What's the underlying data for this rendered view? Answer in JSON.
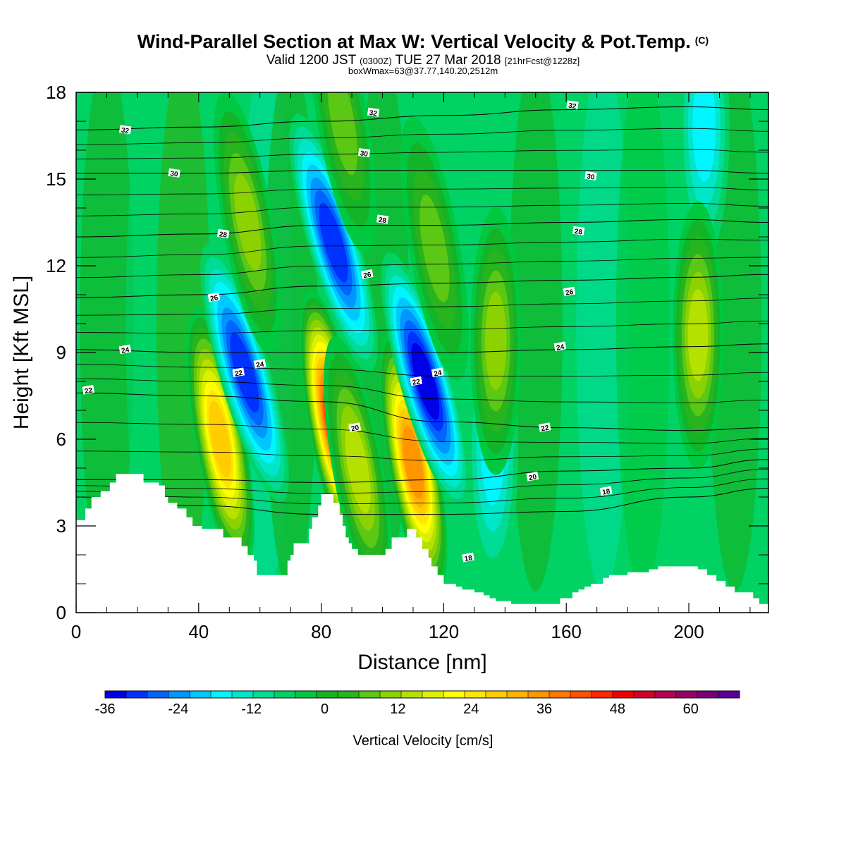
{
  "header": {
    "title": "Wind-Parallel Section at Max W: Vertical Velocity & Pot.Temp.",
    "title_mark": "(C)",
    "valid_a": "Valid 1200 JST",
    "valid_utc": "(0300Z)",
    "valid_b": "TUE 27 Mar 2018",
    "fcst": "[21hrFcst@1228z]",
    "subline": "boxWmax=63@37.77,140.20,2512m"
  },
  "chart_data": {
    "type": "heatmap",
    "title": "Wind-Parallel Section at Max W: Vertical Velocity & Pot.Temp.",
    "xlabel": "Distance [nm]",
    "ylabel": "Height [Kft MSL]",
    "xlim": [
      0,
      226
    ],
    "ylim": [
      0,
      18
    ],
    "x_ticks": [
      0,
      40,
      80,
      120,
      160,
      200
    ],
    "y_ticks": [
      0,
      3,
      6,
      9,
      12,
      15,
      18
    ],
    "colorbar": {
      "title": "Vertical Velocity [cm/s]",
      "range": [
        -36,
        68
      ],
      "step": 4,
      "tick_labels": [
        "-36",
        "-24",
        "-12",
        "0",
        "12",
        "24",
        "36",
        "48",
        "60"
      ],
      "tick_values": [
        -36,
        -24,
        -12,
        0,
        12,
        24,
        36,
        48,
        60
      ],
      "colors": [
        "#0000e6",
        "#0032ff",
        "#0064ff",
        "#0096ff",
        "#00c8ff",
        "#00f5ff",
        "#00e6c8",
        "#00dc96",
        "#00d264",
        "#00c840",
        "#14b428",
        "#28b41e",
        "#5ac814",
        "#8cd200",
        "#b4e100",
        "#dcf000",
        "#ffff00",
        "#ffe600",
        "#ffcd00",
        "#ffb400",
        "#ff9600",
        "#ff7800",
        "#ff5000",
        "#ff2800",
        "#f00000",
        "#d20028",
        "#b40050",
        "#960064",
        "#780078",
        "#5a0096"
      ]
    },
    "velocity_cells": [
      {
        "x": 47,
        "z": 6.0,
        "w": 40
      },
      {
        "x": 84,
        "z": 6.6,
        "w": 56
      },
      {
        "x": 110,
        "z": 5.2,
        "w": 48
      },
      {
        "x": 55,
        "z": 8.3,
        "w": -30
      },
      {
        "x": 84,
        "z": 12.8,
        "w": -32
      },
      {
        "x": 114,
        "z": 8.0,
        "w": -34
      },
      {
        "x": 136,
        "z": 5.6,
        "w": -14
      },
      {
        "x": 205,
        "z": 16.8,
        "w": -14
      },
      {
        "x": 203,
        "z": 9.6,
        "w": 24
      },
      {
        "x": 137,
        "z": 9.4,
        "w": 20
      },
      {
        "x": 92,
        "z": 5.0,
        "w": 22
      },
      {
        "x": 56,
        "z": 13.5,
        "w": 18
      },
      {
        "x": 87,
        "z": 17.0,
        "w": 16
      },
      {
        "x": 117,
        "z": 12.6,
        "w": 14
      }
    ],
    "theta_contours": [
      {
        "theta": "18",
        "z": [
          4.0,
          3.7,
          3.4,
          3.4,
          3.5,
          4.0,
          4.3
        ]
      },
      {
        "theta": "20",
        "z": [
          4.6,
          4.6,
          4.5,
          4.6,
          4.9,
          5.0,
          5.3
        ]
      },
      {
        "theta": "22",
        "z": [
          7.6,
          7.5,
          7.3,
          6.6,
          6.4,
          6.3,
          6.4
        ]
      },
      {
        "theta": "24",
        "z": [
          9.1,
          9.0,
          9.0,
          9.0,
          9.1,
          9.2,
          9.3
        ]
      },
      {
        "theta": "26",
        "z": [
          10.9,
          11.0,
          11.3,
          11.4,
          11.5,
          11.6,
          11.7
        ]
      },
      {
        "theta": "28",
        "z": [
          13.0,
          13.1,
          13.4,
          13.4,
          13.5,
          13.6,
          13.5
        ]
      },
      {
        "theta": "30",
        "z": [
          15.2,
          15.2,
          15.3,
          15.3,
          15.3,
          15.3,
          15.2
        ]
      },
      {
        "theta": "32",
        "z": [
          16.7,
          16.8,
          17.0,
          17.2,
          17.4,
          17.5,
          17.4
        ]
      }
    ],
    "contour_x": [
      0,
      40,
      80,
      120,
      160,
      200,
      226
    ],
    "contour_labels": [
      {
        "text": "32",
        "x": 16,
        "z": 16.7
      },
      {
        "text": "32",
        "x": 97,
        "z": 17.3
      },
      {
        "text": "32",
        "x": 162,
        "z": 17.55
      },
      {
        "text": "30",
        "x": 32,
        "z": 15.2
      },
      {
        "text": "30",
        "x": 94,
        "z": 15.9
      },
      {
        "text": "30",
        "x": 168,
        "z": 15.1
      },
      {
        "text": "28",
        "x": 48,
        "z": 13.1
      },
      {
        "text": "28",
        "x": 100,
        "z": 13.6
      },
      {
        "text": "28",
        "x": 164,
        "z": 13.2
      },
      {
        "text": "26",
        "x": 45,
        "z": 10.9
      },
      {
        "text": "26",
        "x": 95,
        "z": 11.7
      },
      {
        "text": "26",
        "x": 161,
        "z": 11.1
      },
      {
        "text": "24",
        "x": 16,
        "z": 9.1
      },
      {
        "text": "24",
        "x": 60,
        "z": 8.6
      },
      {
        "text": "24",
        "x": 118,
        "z": 8.3
      },
      {
        "text": "24",
        "x": 158,
        "z": 9.2
      },
      {
        "text": "22",
        "x": 4,
        "z": 7.7
      },
      {
        "text": "22",
        "x": 53,
        "z": 8.3
      },
      {
        "text": "22",
        "x": 111,
        "z": 8.0
      },
      {
        "text": "22",
        "x": 153,
        "z": 6.4
      },
      {
        "text": "20",
        "x": 91,
        "z": 6.4
      },
      {
        "text": "20",
        "x": 149,
        "z": 4.7
      },
      {
        "text": "18",
        "x": 173,
        "z": 4.2
      },
      {
        "text": "18",
        "x": 128,
        "z": 1.9
      }
    ],
    "terrain": {
      "x": [
        0,
        3,
        5,
        8,
        11,
        13,
        16,
        19,
        22,
        27,
        29,
        30,
        33,
        36,
        38,
        40,
        41,
        48,
        52,
        54,
        56,
        58,
        59,
        63,
        64,
        68,
        69,
        70,
        71,
        76,
        77,
        79,
        80,
        81,
        82,
        84,
        86,
        87,
        88,
        89,
        90,
        91,
        92,
        94,
        95,
        98,
        101,
        103,
        106,
        108,
        109,
        111,
        113,
        115,
        116,
        118,
        120,
        122,
        124,
        126,
        128,
        130,
        133,
        135,
        137,
        140,
        142,
        144,
        146,
        148,
        152,
        154,
        156,
        158,
        160,
        162,
        164,
        166,
        168,
        170,
        172,
        174,
        176,
        180,
        184,
        187,
        190,
        194,
        196,
        198,
        200,
        203,
        206,
        209,
        212,
        215,
        218,
        221,
        223,
        226
      ],
      "z": [
        3.2,
        3.6,
        4.0,
        4.2,
        4.5,
        4.8,
        4.8,
        4.8,
        4.5,
        4.4,
        4.0,
        3.8,
        3.6,
        3.3,
        3.0,
        3.0,
        2.9,
        2.6,
        2.6,
        2.3,
        2.0,
        1.8,
        1.3,
        1.3,
        1.3,
        1.3,
        1.8,
        2.0,
        2.4,
        2.9,
        3.3,
        3.7,
        4.1,
        4.1,
        4.1,
        3.8,
        3.4,
        3.0,
        2.6,
        2.4,
        2.2,
        2.2,
        2.0,
        2.0,
        2.0,
        2.0,
        2.2,
        2.6,
        2.6,
        2.9,
        2.9,
        2.6,
        2.2,
        1.9,
        1.6,
        1.3,
        1.0,
        1.0,
        0.9,
        0.8,
        0.8,
        0.7,
        0.6,
        0.5,
        0.4,
        0.4,
        0.3,
        0.3,
        0.3,
        0.3,
        0.3,
        0.3,
        0.3,
        0.5,
        0.5,
        0.7,
        0.8,
        0.9,
        1.0,
        1.0,
        1.2,
        1.3,
        1.3,
        1.4,
        1.4,
        1.5,
        1.6,
        1.6,
        1.6,
        1.6,
        1.6,
        1.5,
        1.3,
        1.1,
        0.9,
        0.7,
        0.7,
        0.5,
        0.3,
        0.3
      ]
    }
  }
}
